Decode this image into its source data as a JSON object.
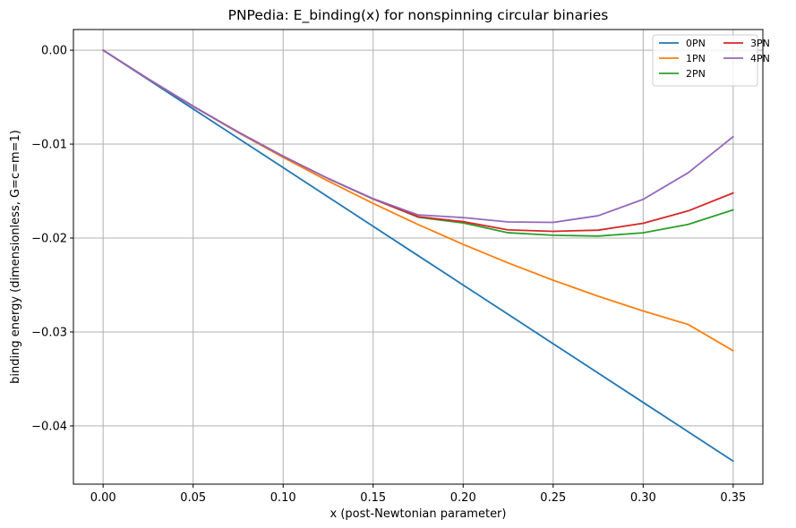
{
  "chart_data": {
    "type": "line",
    "title": "PNPedia: E_binding(x) for nonspinning circular binaries",
    "xlabel": "x (post-Newtonian parameter)",
    "ylabel": "binding energy (dimensionless, G=c=m=1)",
    "xlim": [
      -0.0165,
      0.3665
    ],
    "ylim": [
      -0.0462,
      0.0022
    ],
    "xticks": [
      0.0,
      0.05,
      0.1,
      0.15,
      0.2,
      0.25,
      0.3,
      0.35
    ],
    "xtick_labels": [
      "0.00",
      "0.05",
      "0.10",
      "0.15",
      "0.20",
      "0.25",
      "0.30",
      "0.35"
    ],
    "yticks": [
      0.0,
      -0.01,
      -0.02,
      -0.03,
      -0.04
    ],
    "ytick_labels": [
      "0.00",
      "−0.01",
      "−0.02",
      "−0.03",
      "−0.04"
    ],
    "grid": true,
    "legend": {
      "placement": "top-right",
      "columns": 2
    },
    "x": [
      0.0,
      0.025,
      0.05,
      0.075,
      0.1,
      0.125,
      0.15,
      0.175,
      0.2,
      0.225,
      0.25,
      0.275,
      0.3,
      0.325,
      0.35
    ],
    "series": [
      {
        "name": "0PN",
        "color": "#1f77b4",
        "values": [
          0.0,
          -0.003125,
          -0.00625,
          -0.009375,
          -0.0125,
          -0.015625,
          -0.01875,
          -0.021875,
          -0.025,
          -0.028125,
          -0.03125,
          -0.034375,
          -0.0375,
          -0.040625,
          -0.04375
        ]
      },
      {
        "name": "1PN",
        "color": "#ff7f0e",
        "values": [
          0.0,
          -0.003056,
          -0.005977,
          -0.008764,
          -0.011415,
          -0.013932,
          -0.016313,
          -0.01856,
          -0.020671,
          -0.022647,
          -0.024488,
          -0.026194,
          -0.027765,
          -0.029201,
          -0.032
        ]
      },
      {
        "name": "2PN",
        "color": "#2ca02c",
        "values": [
          0.0,
          -0.003056,
          -0.005962,
          -0.008711,
          -0.011283,
          -0.013663,
          -0.015834,
          -0.017781,
          -0.018389,
          -0.019434,
          -0.019703,
          -0.019791,
          -0.019437,
          -0.018547,
          -0.017
        ]
      },
      {
        "name": "3PN",
        "color": "#d62728",
        "values": [
          0.0,
          -0.003056,
          -0.005962,
          -0.008711,
          -0.011283,
          -0.013663,
          -0.015832,
          -0.017723,
          -0.018255,
          -0.019133,
          -0.019282,
          -0.019159,
          -0.018427,
          -0.017108,
          -0.0152
        ]
      },
      {
        "name": "4PN",
        "color": "#9467bd",
        "values": [
          0.0,
          -0.003056,
          -0.005962,
          -0.008711,
          -0.011283,
          -0.013663,
          -0.015802,
          -0.017537,
          -0.017822,
          -0.018284,
          -0.018332,
          -0.017623,
          -0.015876,
          -0.01305,
          -0.0092
        ]
      }
    ]
  }
}
